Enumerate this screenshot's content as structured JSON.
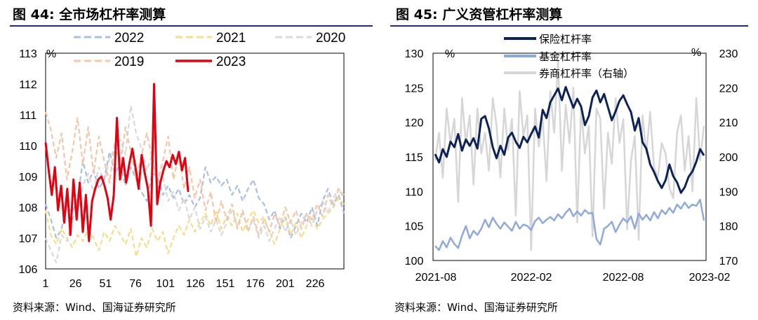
{
  "left_title": "图 44:  全市场杠杆率测算",
  "right_title": "图 45:  广义资管杠杆率测算",
  "left_source": "资料来源：Wind、国海证券研究所",
  "right_source": "资料来源：Wind、国海证券研究所",
  "chart_data": [
    {
      "type": "line",
      "title": "全市场杠杆率测算",
      "y_unit": "%",
      "ylim": [
        106,
        113
      ],
      "y_ticks": [
        "106",
        "107",
        "108",
        "109",
        "110",
        "111",
        "112",
        "113"
      ],
      "x_ticks": [
        "1",
        "26",
        "51",
        "76",
        "101",
        "126",
        "151",
        "176",
        "201",
        "226"
      ],
      "xlim": [
        1,
        250
      ],
      "legend_position": "top",
      "series": [
        {
          "name": "2022",
          "color": "#a9bfe0",
          "dashed": true,
          "values": [
            108.1,
            107.6,
            107.0,
            107.3,
            108.1,
            107.8,
            108.3,
            109.5,
            108.8,
            109.2,
            108.6,
            108.9,
            109.8,
            109.1,
            109.4,
            108.7,
            109.3,
            108.9,
            108.5,
            108.2,
            109.1,
            109.0,
            108.4,
            108.7,
            108.3,
            108.6,
            108.1,
            108.4,
            108.0,
            108.3,
            109.3,
            108.8,
            109.0,
            108.7,
            108.9,
            108.4,
            108.7,
            108.2,
            108.6,
            108.9,
            108.3,
            108.1,
            107.6,
            107.9,
            107.3,
            107.7,
            107.0,
            107.4,
            107.8,
            107.5,
            108.0,
            107.4,
            108.2,
            108.6,
            108.1,
            108.4,
            107.8
          ]
        },
        {
          "name": "2021",
          "color": "#f5dd8a",
          "dashed": true,
          "values": [
            107.9,
            107.1,
            106.8,
            107.3,
            107.0,
            106.7,
            107.1,
            106.9,
            107.3,
            107.0,
            106.6,
            107.2,
            106.9,
            107.4,
            107.1,
            106.8,
            107.3,
            106.4,
            107.0,
            106.7,
            107.3,
            106.9,
            107.2,
            106.5,
            107.0,
            107.4,
            107.1,
            107.6,
            107.2,
            107.5,
            107.8,
            107.4,
            107.9,
            107.3,
            107.7,
            107.4,
            107.8,
            107.2,
            107.6,
            107.9,
            107.5,
            107.7,
            107.2,
            106.8,
            107.3,
            107.7,
            107.1,
            107.5,
            107.0,
            107.4,
            107.7,
            107.3,
            107.6,
            107.8,
            108.0,
            108.3,
            108.1
          ]
        },
        {
          "name": "2020",
          "color": "#d9d9d9",
          "dashed": true,
          "values": [
            107.0,
            106.6,
            106.2,
            107.1,
            106.9,
            107.6,
            107.9,
            108.7,
            109.1,
            108.5,
            109.3,
            108.8,
            109.6,
            109.9,
            110.2,
            109.7,
            111.3,
            110.4,
            109.9,
            109.2,
            109.7,
            108.6,
            109.0,
            108.2,
            108.5,
            107.9,
            108.3,
            107.6,
            108.0,
            107.3,
            107.7,
            107.2,
            107.6,
            107.1,
            107.5,
            107.9,
            107.4,
            107.8,
            107.3,
            107.6,
            107.0,
            107.4,
            106.9,
            107.3,
            107.7,
            107.2,
            107.6,
            107.1,
            107.5,
            107.8,
            107.4,
            107.9,
            108.2,
            107.8,
            108.3,
            108.6,
            108.4
          ]
        },
        {
          "name": "2019",
          "color": "#f4c6a8",
          "dashed": true,
          "values": [
            111.1,
            110.5,
            109.6,
            110.4,
            108.9,
            109.8,
            110.9,
            109.4,
            110.6,
            109.1,
            110.3,
            109.5,
            108.8,
            110.1,
            109.4,
            110.6,
            109.8,
            108.9,
            109.7,
            110.4,
            109.6,
            108.8,
            109.5,
            110.3,
            108.9,
            109.7,
            108.6,
            109.3,
            108.3,
            108.9,
            107.9,
            108.5,
            107.5,
            108.2,
            107.6,
            108.1,
            107.3,
            107.9,
            107.2,
            107.7,
            107.1,
            107.6,
            107.2,
            107.8,
            107.4,
            108.0,
            107.5,
            107.9,
            107.3,
            107.8,
            107.6,
            108.1,
            107.7,
            108.4,
            108.0,
            108.6,
            108.3
          ]
        },
        {
          "name": "2023",
          "color": "#e3000f",
          "dashed": false,
          "values": [
            110.1,
            109.2,
            108.4,
            109.3,
            107.9,
            108.7,
            107.5,
            108.6,
            107.1,
            108.9,
            107.6,
            108.8,
            107.2,
            108.4,
            106.9,
            108.2,
            108.6,
            108.9,
            109.0,
            108.7,
            108.3,
            107.6,
            108.4,
            110.9,
            108.9,
            109.6,
            108.8,
            109.4,
            109.9,
            109.3,
            108.6,
            109.7,
            109.1,
            108.6,
            107.4,
            112.0,
            108.1,
            108.8,
            109.2,
            109.5,
            109.3,
            109.7,
            109.4,
            109.8,
            109.2,
            109.6,
            108.5
          ]
        }
      ]
    },
    {
      "type": "line",
      "title": "广义资管杠杆率测算",
      "y_unit_left": "%",
      "y_unit_right": "%",
      "ylim_left": [
        100,
        130
      ],
      "ylim_right": [
        170,
        230
      ],
      "y_ticks_left": [
        "100",
        "105",
        "110",
        "115",
        "120",
        "125",
        "130"
      ],
      "y_ticks_right": [
        "170",
        "180",
        "190",
        "200",
        "210",
        "220",
        "230"
      ],
      "x_ticks": [
        "2021-08",
        "2022-02",
        "2022-08",
        "2023-02"
      ],
      "legend_position": "top-center",
      "series": [
        {
          "name": "保险杠杆率",
          "color": "#0d2357",
          "axis": "left",
          "values": [
            115.4,
            114.2,
            116.1,
            115.0,
            117.2,
            116.4,
            118.3,
            115.9,
            117.5,
            116.6,
            117.7,
            116.2,
            120.5,
            120.9,
            119.1,
            116.4,
            114.8,
            116.6,
            115.3,
            117.8,
            118.5,
            117.2,
            116.3,
            117.9,
            117.1,
            118.3,
            119.4,
            117.8,
            121.8,
            120.6,
            122.9,
            123.9,
            124.9,
            123.2,
            125.1,
            123.6,
            122.1,
            123.4,
            122.3,
            119.6,
            120.9,
            123.6,
            124.6,
            122.9,
            124.1,
            122.2,
            120.3,
            121.6,
            123.1,
            123.9,
            122.6,
            121.5,
            118.8,
            120.6,
            117.1,
            116.2,
            113.9,
            112.8,
            111.5,
            110.5,
            111.6,
            113.9,
            112.2,
            111.3,
            109.8,
            110.6,
            112.1,
            112.9,
            114.3,
            116.1,
            115.2
          ]
        },
        {
          "name": "基金杠杆率",
          "color": "#8ea9db",
          "axis": "left",
          "values": [
            102.1,
            101.5,
            102.8,
            101.9,
            103.3,
            102.4,
            101.8,
            103.6,
            105.0,
            103.2,
            104.3,
            103.7,
            104.6,
            105.9,
            104.8,
            106.2,
            105.3,
            104.6,
            105.5,
            104.9,
            104.3,
            105.6,
            104.6,
            105.2,
            105.0,
            104.4,
            105.7,
            106.2,
            105.4,
            105.9,
            106.3,
            105.8,
            106.7,
            106.1,
            106.9,
            107.5,
            106.4,
            107.1,
            106.5,
            107.3,
            106.8,
            106.9,
            103.1,
            102.3,
            104.6,
            105.0,
            105.6,
            104.1,
            105.2,
            106.1,
            105.5,
            106.4,
            104.6,
            106.8,
            105.9,
            106.6,
            105.8,
            107.0,
            106.1,
            107.3,
            106.7,
            107.6,
            106.9,
            108.1,
            107.5,
            108.4,
            107.6,
            108.1,
            107.9,
            108.8,
            105.8
          ]
        },
        {
          "name": "券商杠杆率（右轴）",
          "color": "#d6d6d6",
          "axis": "right",
          "values": [
            199,
            207,
            194,
            214,
            204,
            211,
            187,
            217,
            204,
            212,
            192,
            214,
            201,
            207,
            196,
            217,
            209,
            194,
            214,
            202,
            211,
            183,
            219,
            206,
            212,
            173,
            214,
            203,
            211,
            193,
            219,
            207,
            228,
            196,
            215,
            204,
            220,
            181,
            214,
            201,
            209,
            177,
            214,
            211,
            185,
            207,
            198,
            217,
            204,
            211,
            179,
            199,
            206,
            176,
            212,
            201,
            213,
            197,
            194,
            204,
            201,
            191,
            188,
            207,
            212,
            196,
            206,
            190,
            217,
            199,
            209
          ]
        }
      ]
    }
  ]
}
